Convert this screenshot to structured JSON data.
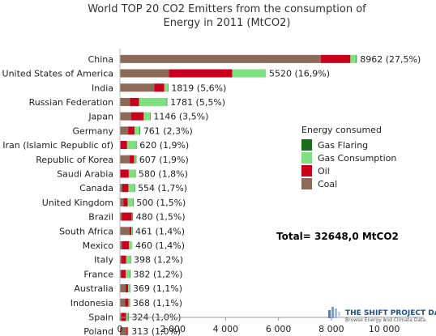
{
  "chart_data": {
    "type": "bar",
    "orientation": "horizontal",
    "stacked": true,
    "title_lines": [
      "World TOP 20 CO2 Emitters from the consumption of",
      "Energy in 2011  (MtCO2)"
    ],
    "categories": [
      "China",
      "United States of America",
      "India",
      "Russian Federation",
      "Japan",
      "Germany",
      "Iran (Islamic Republic of)",
      "Republic of Korea",
      "Saudi Arabia",
      "Canada",
      "United Kingdom",
      "Brazil",
      "South Africa",
      "Mexico",
      "Italy",
      "France",
      "Australia",
      "Indonesia",
      "Spain",
      "Poland"
    ],
    "series": [
      {
        "name": "Coal",
        "color": "#8b6a5a",
        "values": [
          7600,
          1850,
          1300,
          380,
          420,
          310,
          20,
          370,
          5,
          90,
          130,
          70,
          360,
          80,
          60,
          40,
          210,
          200,
          60,
          250
        ]
      },
      {
        "name": "Oil",
        "color": "#c8001e",
        "values": [
          1120,
          2400,
          380,
          340,
          480,
          240,
          250,
          170,
          330,
          230,
          160,
          380,
          70,
          260,
          170,
          180,
          100,
          120,
          170,
          50
        ]
      },
      {
        "name": "Gas Consumption",
        "color": "#7fe07f",
        "values": [
          220,
          1270,
          130,
          1050,
          240,
          200,
          340,
          65,
          240,
          230,
          205,
          25,
          30,
          120,
          165,
          160,
          55,
          40,
          90,
          13
        ]
      },
      {
        "name": "Gas Flaring",
        "color": "#1a6b1a",
        "values": [
          22,
          0,
          9,
          11,
          6,
          11,
          10,
          2,
          5,
          4,
          5,
          5,
          1,
          0,
          3,
          2,
          4,
          8,
          4,
          0
        ]
      }
    ],
    "value_labels": [
      "8962 (27,5%)",
      "5520 (16,9%)",
      "1819 (5,6%)",
      "1781 (5,5%)",
      "1146 (3,5%)",
      "761 (2,3%)",
      "620 (1,9%)",
      "607 (1,9%)",
      "580 (1,8%)",
      "554 (1,7%)",
      "500 (1,5%)",
      "480 (1,5%)",
      "461 (1,4%)",
      "460 (1,4%)",
      "398 (1,2%)",
      "382 (1,2%)",
      "369 (1,1%)",
      "368 (1,1%)",
      "324 (1,0%)",
      "313 (1,0%)"
    ],
    "xlim": [
      0,
      11500
    ],
    "xticks": [
      0,
      2000,
      4000,
      6000,
      8000,
      10000
    ],
    "xtick_labels": [
      "0",
      "2 000",
      "4 000",
      "6 000",
      "8 000",
      "10 000"
    ],
    "grid": false,
    "legend": {
      "title": "Energy consumed",
      "placement": "right",
      "entries": [
        {
          "label": "Gas Flaring",
          "color": "#1a6b1a"
        },
        {
          "label": "Gas Consumption",
          "color": "#7fe07f"
        },
        {
          "label": "Oil",
          "color": "#c8001e"
        },
        {
          "label": "Coal",
          "color": "#8b6a5a"
        }
      ]
    },
    "annotation": "Total= 32648,0 MtCO2"
  },
  "logo": {
    "name": "THE SHIFT PROJECT DATA PO",
    "tagline": "Browse Energy and Climate Data"
  }
}
